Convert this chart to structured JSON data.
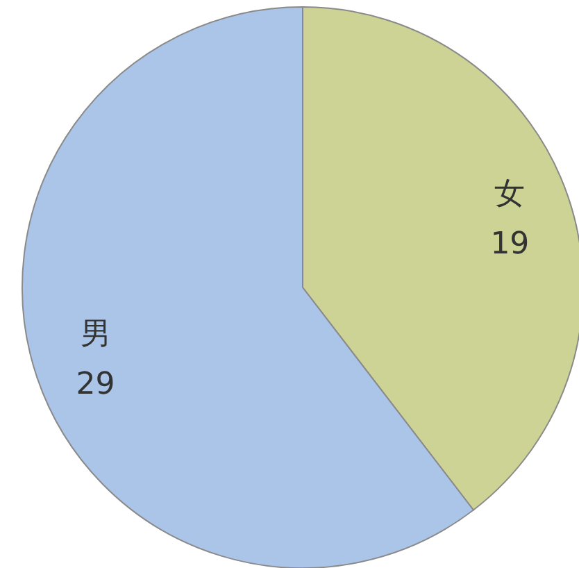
{
  "chart_data": {
    "type": "pie",
    "categories": [
      "女",
      "男"
    ],
    "values": [
      19,
      29
    ],
    "colors": [
      "#cdd395",
      "#abc5e8"
    ],
    "data_labels": true
  }
}
